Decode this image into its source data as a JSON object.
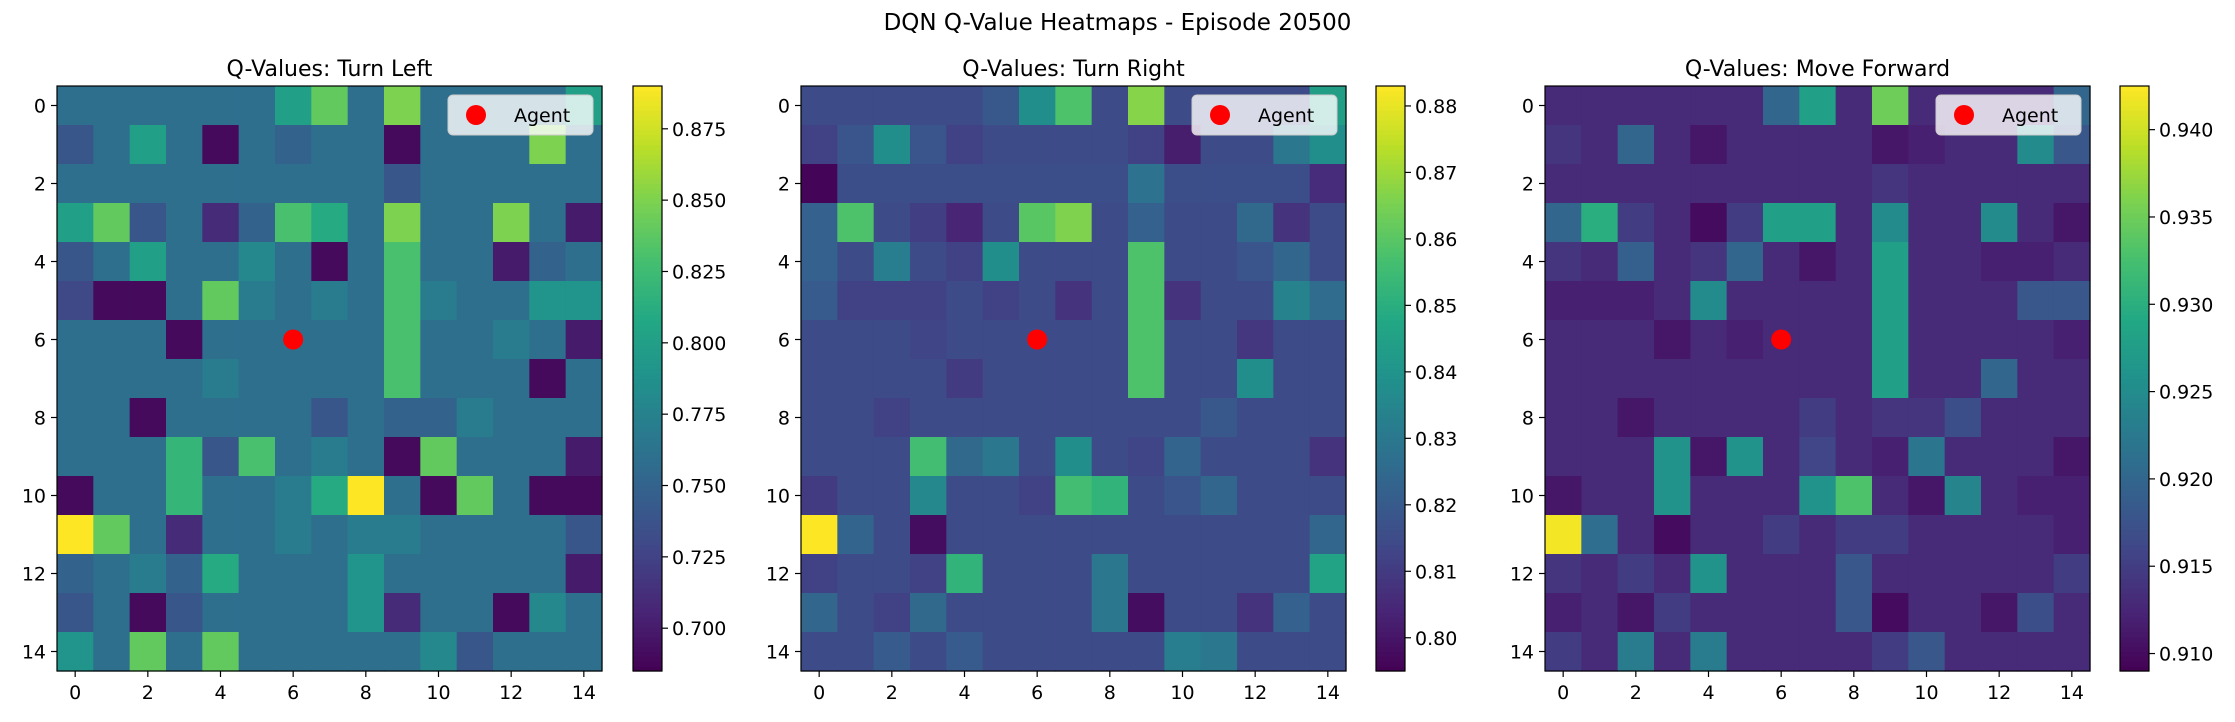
{
  "suptitle": "DQN Q-Value Heatmaps - Episode 20500",
  "chart_data": [
    {
      "type": "heatmap",
      "title": "Q-Values: Turn Left",
      "colormap": "viridis",
      "vmin": 0.685,
      "vmax": 0.89,
      "xticks": [
        "0",
        "2",
        "4",
        "6",
        "8",
        "10",
        "12",
        "14"
      ],
      "yticks": [
        "0",
        "2",
        "4",
        "6",
        "8",
        "10",
        "12",
        "14"
      ],
      "colorbar_ticks": [
        "0.700",
        "0.725",
        "0.750",
        "0.775",
        "0.800",
        "0.825",
        "0.850",
        "0.875"
      ],
      "colorbar_tick_values": [
        0.7,
        0.725,
        0.75,
        0.775,
        0.8,
        0.825,
        0.85,
        0.875
      ],
      "agent": {
        "x": 6,
        "y": 6,
        "label": "Agent",
        "color": "#ff0000"
      },
      "legend": "upper right",
      "grid": [
        [
          0.76,
          0.76,
          0.76,
          0.76,
          0.76,
          0.76,
          0.8,
          0.84,
          0.76,
          0.85,
          0.76,
          0.76,
          0.76,
          0.76,
          0.8
        ],
        [
          0.74,
          0.76,
          0.8,
          0.76,
          0.69,
          0.76,
          0.75,
          0.76,
          0.76,
          0.69,
          0.76,
          0.76,
          0.76,
          0.85,
          0.76
        ],
        [
          0.76,
          0.76,
          0.76,
          0.76,
          0.76,
          0.76,
          0.76,
          0.76,
          0.76,
          0.74,
          0.76,
          0.76,
          0.76,
          0.76,
          0.76
        ],
        [
          0.8,
          0.84,
          0.74,
          0.76,
          0.71,
          0.75,
          0.83,
          0.81,
          0.76,
          0.85,
          0.76,
          0.76,
          0.85,
          0.76,
          0.7
        ],
        [
          0.74,
          0.76,
          0.8,
          0.76,
          0.76,
          0.78,
          0.76,
          0.69,
          0.76,
          0.83,
          0.76,
          0.76,
          0.7,
          0.75,
          0.76
        ],
        [
          0.73,
          0.69,
          0.69,
          0.76,
          0.84,
          0.77,
          0.76,
          0.77,
          0.76,
          0.83,
          0.77,
          0.76,
          0.76,
          0.79,
          0.79
        ],
        [
          0.76,
          0.76,
          0.76,
          0.69,
          0.76,
          0.76,
          0.76,
          0.76,
          0.76,
          0.83,
          0.76,
          0.76,
          0.77,
          0.76,
          0.7
        ],
        [
          0.76,
          0.76,
          0.76,
          0.76,
          0.77,
          0.76,
          0.76,
          0.76,
          0.76,
          0.83,
          0.76,
          0.76,
          0.76,
          0.69,
          0.76
        ],
        [
          0.76,
          0.76,
          0.69,
          0.76,
          0.76,
          0.76,
          0.76,
          0.74,
          0.76,
          0.75,
          0.75,
          0.77,
          0.76,
          0.76,
          0.76
        ],
        [
          0.76,
          0.76,
          0.76,
          0.82,
          0.74,
          0.83,
          0.76,
          0.77,
          0.76,
          0.69,
          0.84,
          0.76,
          0.76,
          0.76,
          0.7
        ],
        [
          0.69,
          0.76,
          0.76,
          0.82,
          0.76,
          0.76,
          0.77,
          0.81,
          0.89,
          0.76,
          0.69,
          0.84,
          0.76,
          0.69,
          0.69
        ],
        [
          0.89,
          0.84,
          0.76,
          0.71,
          0.76,
          0.76,
          0.77,
          0.76,
          0.77,
          0.77,
          0.76,
          0.76,
          0.76,
          0.76,
          0.74
        ],
        [
          0.75,
          0.76,
          0.77,
          0.75,
          0.81,
          0.76,
          0.76,
          0.76,
          0.79,
          0.76,
          0.76,
          0.76,
          0.76,
          0.76,
          0.7
        ],
        [
          0.74,
          0.76,
          0.69,
          0.74,
          0.76,
          0.76,
          0.76,
          0.76,
          0.79,
          0.71,
          0.76,
          0.76,
          0.69,
          0.78,
          0.76
        ],
        [
          0.79,
          0.76,
          0.84,
          0.76,
          0.84,
          0.76,
          0.76,
          0.76,
          0.76,
          0.76,
          0.78,
          0.74,
          0.76,
          0.76,
          0.76
        ]
      ]
    },
    {
      "type": "heatmap",
      "title": "Q-Values: Turn Right",
      "colormap": "viridis",
      "vmin": 0.795,
      "vmax": 0.883,
      "xticks": [
        "0",
        "2",
        "4",
        "6",
        "8",
        "10",
        "12",
        "14"
      ],
      "yticks": [
        "0",
        "2",
        "4",
        "6",
        "8",
        "10",
        "12",
        "14"
      ],
      "colorbar_ticks": [
        "0.80",
        "0.81",
        "0.82",
        "0.83",
        "0.84",
        "0.85",
        "0.86",
        "0.87",
        "0.88"
      ],
      "colorbar_tick_values": [
        0.8,
        0.81,
        0.82,
        0.83,
        0.84,
        0.85,
        0.86,
        0.87,
        0.88
      ],
      "agent": {
        "x": 6,
        "y": 6,
        "label": "Agent",
        "color": "#ff0000"
      },
      "legend": "upper right",
      "grid": [
        [
          0.815,
          0.815,
          0.815,
          0.815,
          0.815,
          0.819,
          0.838,
          0.858,
          0.815,
          0.867,
          0.815,
          0.815,
          0.815,
          0.815,
          0.844
        ],
        [
          0.812,
          0.818,
          0.838,
          0.818,
          0.812,
          0.815,
          0.815,
          0.815,
          0.815,
          0.812,
          0.802,
          0.815,
          0.815,
          0.83,
          0.838
        ],
        [
          0.796,
          0.816,
          0.816,
          0.816,
          0.816,
          0.816,
          0.816,
          0.816,
          0.816,
          0.828,
          0.816,
          0.816,
          0.816,
          0.816,
          0.806
        ],
        [
          0.822,
          0.858,
          0.815,
          0.811,
          0.804,
          0.815,
          0.86,
          0.866,
          0.815,
          0.822,
          0.815,
          0.815,
          0.825,
          0.808,
          0.815
        ],
        [
          0.822,
          0.815,
          0.832,
          0.815,
          0.812,
          0.838,
          0.815,
          0.815,
          0.815,
          0.858,
          0.815,
          0.815,
          0.818,
          0.824,
          0.815
        ],
        [
          0.82,
          0.812,
          0.812,
          0.812,
          0.815,
          0.812,
          0.815,
          0.808,
          0.815,
          0.858,
          0.808,
          0.815,
          0.815,
          0.834,
          0.826
        ],
        [
          0.815,
          0.815,
          0.815,
          0.813,
          0.815,
          0.815,
          0.815,
          0.815,
          0.815,
          0.858,
          0.815,
          0.815,
          0.809,
          0.815,
          0.815
        ],
        [
          0.815,
          0.815,
          0.815,
          0.815,
          0.81,
          0.815,
          0.815,
          0.815,
          0.815,
          0.858,
          0.815,
          0.815,
          0.838,
          0.815,
          0.815
        ],
        [
          0.815,
          0.815,
          0.812,
          0.815,
          0.815,
          0.815,
          0.815,
          0.815,
          0.815,
          0.815,
          0.815,
          0.819,
          0.815,
          0.815,
          0.815
        ],
        [
          0.815,
          0.815,
          0.815,
          0.856,
          0.825,
          0.83,
          0.815,
          0.838,
          0.815,
          0.813,
          0.823,
          0.815,
          0.815,
          0.815,
          0.808
        ],
        [
          0.81,
          0.815,
          0.815,
          0.836,
          0.815,
          0.815,
          0.812,
          0.856,
          0.852,
          0.815,
          0.818,
          0.824,
          0.815,
          0.815,
          0.815
        ],
        [
          0.883,
          0.823,
          0.815,
          0.798,
          0.815,
          0.815,
          0.815,
          0.815,
          0.815,
          0.815,
          0.815,
          0.815,
          0.815,
          0.815,
          0.824
        ],
        [
          0.812,
          0.815,
          0.815,
          0.812,
          0.852,
          0.815,
          0.815,
          0.815,
          0.83,
          0.815,
          0.815,
          0.815,
          0.815,
          0.815,
          0.846
        ],
        [
          0.824,
          0.815,
          0.812,
          0.825,
          0.815,
          0.815,
          0.815,
          0.815,
          0.83,
          0.798,
          0.815,
          0.815,
          0.808,
          0.822,
          0.815
        ],
        [
          0.815,
          0.815,
          0.82,
          0.815,
          0.82,
          0.815,
          0.815,
          0.815,
          0.815,
          0.815,
          0.832,
          0.83,
          0.815,
          0.815,
          0.815
        ]
      ]
    },
    {
      "type": "heatmap",
      "title": "Q-Values: Move Forward",
      "colormap": "viridis",
      "vmin": 0.909,
      "vmax": 0.9425,
      "xticks": [
        "0",
        "2",
        "4",
        "6",
        "8",
        "10",
        "12",
        "14"
      ],
      "yticks": [
        "0",
        "2",
        "4",
        "6",
        "8",
        "10",
        "12",
        "14"
      ],
      "colorbar_ticks": [
        "0.910",
        "0.915",
        "0.920",
        "0.925",
        "0.930",
        "0.935",
        "0.940"
      ],
      "colorbar_tick_values": [
        0.91,
        0.915,
        0.92,
        0.925,
        0.93,
        0.935,
        0.94
      ],
      "agent": {
        "x": 6,
        "y": 6,
        "label": "Agent",
        "color": "#ff0000"
      },
      "legend": "upper right",
      "grid": [
        [
          0.913,
          0.913,
          0.913,
          0.913,
          0.913,
          0.913,
          0.92,
          0.928,
          0.913,
          0.935,
          0.913,
          0.913,
          0.913,
          0.913,
          0.92
        ],
        [
          0.914,
          0.913,
          0.92,
          0.913,
          0.911,
          0.913,
          0.913,
          0.913,
          0.913,
          0.911,
          0.912,
          0.913,
          0.913,
          0.925,
          0.918
        ],
        [
          0.913,
          0.913,
          0.913,
          0.913,
          0.913,
          0.913,
          0.913,
          0.913,
          0.913,
          0.914,
          0.913,
          0.913,
          0.913,
          0.913,
          0.913
        ],
        [
          0.92,
          0.93,
          0.915,
          0.913,
          0.91,
          0.915,
          0.928,
          0.928,
          0.913,
          0.925,
          0.913,
          0.913,
          0.925,
          0.913,
          0.911
        ],
        [
          0.914,
          0.913,
          0.919,
          0.913,
          0.914,
          0.92,
          0.913,
          0.911,
          0.913,
          0.928,
          0.913,
          0.913,
          0.912,
          0.912,
          0.913
        ],
        [
          0.912,
          0.912,
          0.912,
          0.913,
          0.925,
          0.913,
          0.913,
          0.913,
          0.913,
          0.928,
          0.913,
          0.913,
          0.913,
          0.918,
          0.918
        ],
        [
          0.913,
          0.913,
          0.913,
          0.911,
          0.913,
          0.912,
          0.913,
          0.913,
          0.913,
          0.928,
          0.913,
          0.913,
          0.913,
          0.913,
          0.912
        ],
        [
          0.913,
          0.913,
          0.913,
          0.913,
          0.913,
          0.913,
          0.913,
          0.913,
          0.913,
          0.928,
          0.913,
          0.913,
          0.92,
          0.913,
          0.913
        ],
        [
          0.913,
          0.913,
          0.911,
          0.913,
          0.913,
          0.913,
          0.913,
          0.915,
          0.913,
          0.914,
          0.914,
          0.917,
          0.913,
          0.913,
          0.913
        ],
        [
          0.913,
          0.913,
          0.913,
          0.926,
          0.911,
          0.926,
          0.913,
          0.916,
          0.913,
          0.912,
          0.922,
          0.913,
          0.913,
          0.913,
          0.911
        ],
        [
          0.911,
          0.913,
          0.913,
          0.926,
          0.913,
          0.913,
          0.913,
          0.926,
          0.933,
          0.913,
          0.911,
          0.924,
          0.913,
          0.912,
          0.912
        ],
        [
          0.942,
          0.921,
          0.913,
          0.91,
          0.913,
          0.913,
          0.915,
          0.913,
          0.915,
          0.915,
          0.913,
          0.913,
          0.913,
          0.913,
          0.912
        ],
        [
          0.914,
          0.913,
          0.915,
          0.913,
          0.926,
          0.913,
          0.913,
          0.913,
          0.918,
          0.913,
          0.913,
          0.913,
          0.913,
          0.913,
          0.915
        ],
        [
          0.912,
          0.913,
          0.911,
          0.915,
          0.913,
          0.913,
          0.913,
          0.913,
          0.918,
          0.91,
          0.913,
          0.913,
          0.911,
          0.917,
          0.913
        ],
        [
          0.915,
          0.913,
          0.923,
          0.913,
          0.923,
          0.913,
          0.913,
          0.913,
          0.913,
          0.915,
          0.918,
          0.913,
          0.913,
          0.913,
          0.913
        ]
      ]
    }
  ]
}
